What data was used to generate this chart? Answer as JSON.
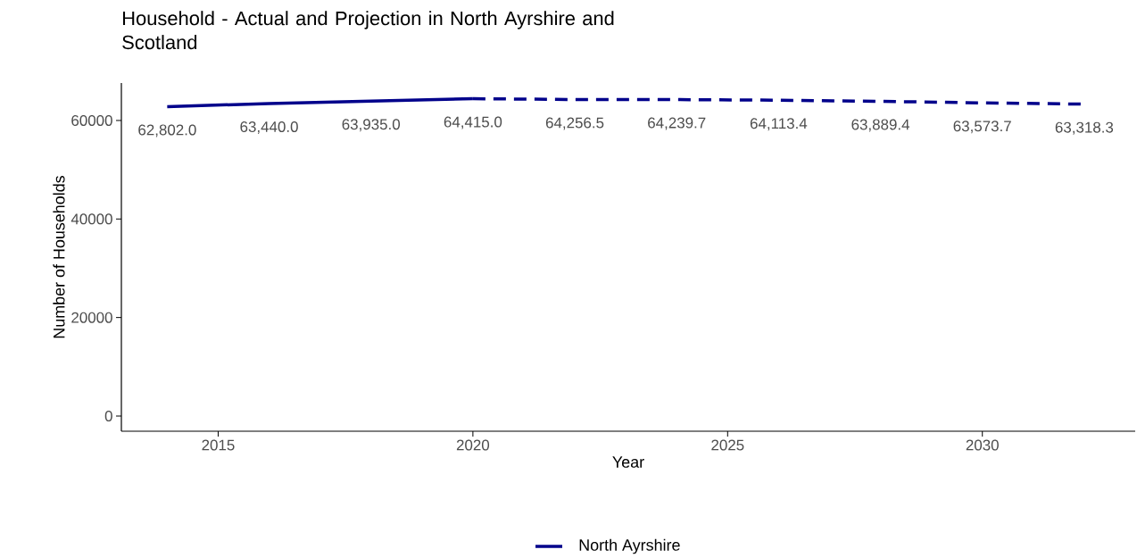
{
  "chart_data": {
    "type": "line",
    "title": "Household - Actual and Projection in North Ayrshire and Scotland",
    "xlabel": "Year",
    "ylabel": "Number of Households",
    "series": [
      {
        "name": "North Ayrshire",
        "color": "#00008b",
        "line_style": "solid",
        "x": [
          2014,
          2016,
          2018,
          2020
        ],
        "values": [
          62802.0,
          63440.0,
          63935.0,
          64415.0
        ],
        "value_labels": [
          "62,802.0",
          "63,440.0",
          "63,935.0",
          "64,415.0"
        ]
      },
      {
        "color": "#00008b",
        "line_style": "dashed",
        "x": [
          2020,
          2022,
          2024,
          2026,
          2028,
          2030,
          2032
        ],
        "values": [
          64415.0,
          64256.5,
          64239.7,
          64113.4,
          63889.4,
          63573.7,
          63318.3
        ],
        "value_labels": [
          null,
          "64,256.5",
          "64,239.7",
          "64,113.4",
          "63,889.4",
          "63,573.7",
          "63,318.3"
        ]
      }
    ],
    "xlim": [
      2013.1,
      2033.0
    ],
    "ylim": [
      -3080,
      67600
    ],
    "xticks": [
      2015,
      2020,
      2025,
      2030
    ],
    "yticks": [
      0,
      20000,
      40000,
      60000
    ],
    "legend": "bottom",
    "marker": "none"
  }
}
